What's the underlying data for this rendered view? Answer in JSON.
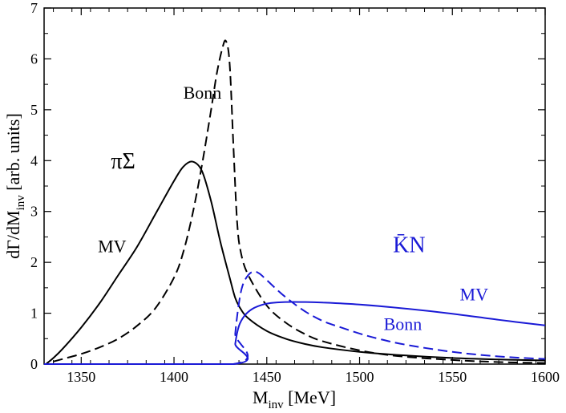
{
  "chart_data": {
    "type": "line",
    "xlabel": {
      "main": "M",
      "sub": "inv",
      "unit": " [MeV]"
    },
    "ylabel": {
      "pre": "dΓ/dM",
      "sub": "inv",
      "post": " [arb. units]"
    },
    "xlim": [
      1330,
      1600
    ],
    "ylim": [
      0,
      7
    ],
    "xticks": [
      1350,
      1400,
      1450,
      1500,
      1550,
      1600
    ],
    "yticks": [
      0,
      1,
      2,
      3,
      4,
      5,
      6,
      7
    ],
    "grid": false,
    "series": [
      {
        "name": "MV",
        "channel": "πΣ",
        "color": "#000000",
        "dash": "solid",
        "x": [
          1331,
          1335,
          1340,
          1350,
          1360,
          1370,
          1380,
          1390,
          1400,
          1405,
          1410,
          1415,
          1420,
          1425,
          1430,
          1433,
          1436,
          1440,
          1450,
          1460,
          1470,
          1480,
          1500,
          1520,
          1550,
          1575,
          1600
        ],
        "y": [
          0.0,
          0.12,
          0.3,
          0.72,
          1.2,
          1.75,
          2.3,
          2.95,
          3.6,
          3.88,
          3.98,
          3.8,
          3.2,
          2.4,
          1.7,
          1.3,
          1.08,
          0.9,
          0.65,
          0.5,
          0.4,
          0.33,
          0.24,
          0.18,
          0.12,
          0.09,
          0.07
        ]
      },
      {
        "name": "Bonn",
        "channel": "πΣ",
        "color": "#000000",
        "dash": "dashed",
        "x": [
          1335,
          1340,
          1350,
          1360,
          1370,
          1380,
          1390,
          1400,
          1405,
          1410,
          1415,
          1420,
          1423,
          1426,
          1428,
          1430,
          1432,
          1434,
          1436,
          1440,
          1450,
          1460,
          1470,
          1480,
          1500,
          1520,
          1550,
          1575,
          1600
        ],
        "y": [
          0.05,
          0.1,
          0.2,
          0.33,
          0.5,
          0.75,
          1.1,
          1.7,
          2.2,
          2.95,
          3.9,
          5.0,
          5.7,
          6.2,
          6.35,
          5.9,
          4.3,
          2.8,
          2.2,
          1.75,
          1.15,
          0.82,
          0.6,
          0.45,
          0.27,
          0.16,
          0.08,
          0.04,
          0.02
        ]
      },
      {
        "name": "MV",
        "channel": "K̄N",
        "color": "#1a1ad6",
        "dash": "solid",
        "x": [
          1330,
          1432,
          1433,
          1435,
          1438,
          1442,
          1447,
          1452,
          1460,
          1470,
          1480,
          1500,
          1525,
          1550,
          1575,
          1600
        ],
        "y": [
          0.0,
          0.0,
          0.4,
          0.75,
          0.95,
          1.08,
          1.16,
          1.2,
          1.22,
          1.22,
          1.21,
          1.17,
          1.09,
          0.99,
          0.87,
          0.76
        ]
      },
      {
        "name": "Bonn",
        "channel": "K̄N",
        "color": "#1a1ad6",
        "dash": "dashed",
        "x": [
          1330,
          1432,
          1433,
          1435,
          1437,
          1440,
          1443,
          1446,
          1450,
          1455,
          1460,
          1470,
          1480,
          1490,
          1500,
          1510,
          1525,
          1550,
          1575,
          1600
        ],
        "y": [
          0.0,
          0.0,
          0.6,
          1.2,
          1.55,
          1.75,
          1.82,
          1.78,
          1.65,
          1.48,
          1.32,
          1.05,
          0.85,
          0.72,
          0.6,
          0.5,
          0.38,
          0.24,
          0.15,
          0.1
        ]
      }
    ],
    "annotations": [
      {
        "id": "bonn-black",
        "text": "Bonn",
        "color": "#000000",
        "x": 1405,
        "y": 5.22
      },
      {
        "id": "pisigma",
        "text": "πΣ",
        "color": "#000000",
        "x": 1366,
        "y": 3.85
      },
      {
        "id": "mv-black",
        "text": "MV",
        "color": "#000000",
        "x": 1359,
        "y": 2.2
      },
      {
        "id": "kbarn",
        "text": "K̄N",
        "color": "#1a1ad6",
        "x": 1518,
        "y": 2.2
      },
      {
        "id": "mv-blue",
        "text": "MV",
        "color": "#1a1ad6",
        "x": 1554,
        "y": 1.25
      },
      {
        "id": "bonn-blue",
        "text": "Bonn",
        "color": "#1a1ad6",
        "x": 1513,
        "y": 0.67
      }
    ]
  }
}
